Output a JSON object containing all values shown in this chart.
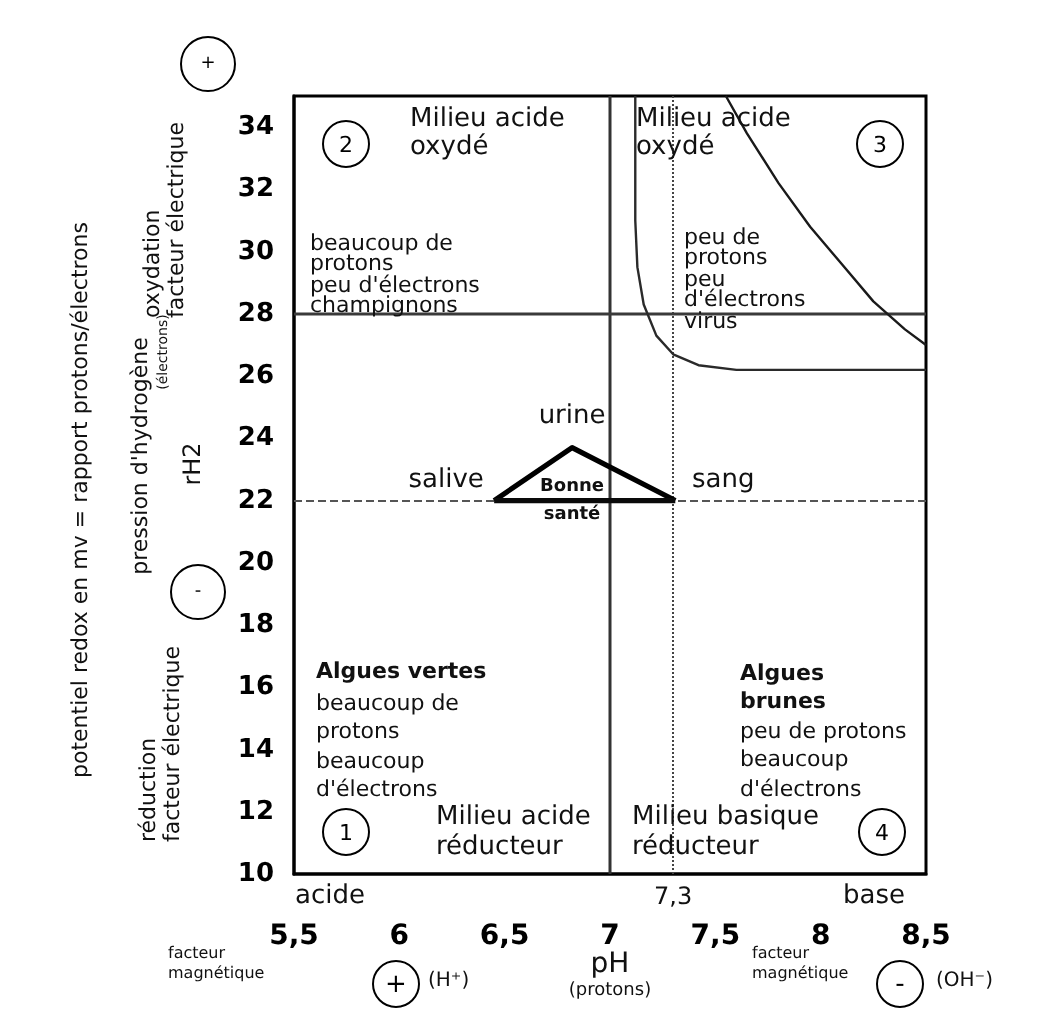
{
  "chart_data": {
    "type": "line",
    "xlabel": "pH\n(protons)",
    "ylabel": "rH2",
    "xlim": [
      5.5,
      8.5
    ],
    "xticks": [
      {
        "value": 5.5,
        "label": "5,5"
      },
      6,
      {
        "value": 6.5,
        "label": "6,5"
      },
      7,
      {
        "value": 7.5,
        "label": "7,5"
      },
      8,
      {
        "value": 8.5,
        "label": "8,5"
      }
    ],
    "ylim": [
      10,
      35
    ],
    "yticks": [
      10,
      12,
      14,
      16,
      18,
      20,
      22,
      24,
      26,
      28,
      30,
      32,
      34
    ],
    "series": [
      {
        "color": "#000000",
        "x": [
          6.45,
          6.82,
          7.31
        ],
        "values": [
          22,
          23.7,
          22
        ]
      },
      {
        "color": "#0a0a0a",
        "x": [
          6.45,
          7.31
        ],
        "values": [
          22,
          22
        ]
      },
      {
        "color": "#1a1a1a",
        "x": [
          7.55,
          7.65,
          7.8,
          7.95,
          8.1,
          8.25,
          8.4,
          8.5
        ],
        "values": [
          35,
          33.8,
          32.2,
          30.8,
          29.6,
          28.4,
          27.5,
          27
        ]
      },
      {
        "color": "#2a2a2a",
        "x": [
          7.12,
          7.12,
          7.13,
          7.16,
          7.22,
          7.3,
          7.42,
          7.6,
          8.5
        ],
        "values": [
          35,
          31,
          29.5,
          28.3,
          27.3,
          26.7,
          26.35,
          26.2,
          26.2
        ]
      }
    ],
    "ref_lines": [
      {
        "axis": "x",
        "value": 7,
        "color": "#333333",
        "line_style": "solid"
      },
      {
        "axis": "x",
        "value": 7.3,
        "label": "7,3",
        "color": "#444444",
        "line_style": "dotted"
      },
      {
        "axis": "y",
        "value": 28,
        "color": "#3a3a3a",
        "line_style": "solid"
      },
      {
        "axis": "y",
        "value": 22,
        "color": "#555555",
        "line_style": "dashed"
      }
    ],
    "annotations": [
      {
        "text": "urine",
        "x": 6.82,
        "y": 23.7
      },
      {
        "text": "salive",
        "x": 6.45,
        "y": 22
      },
      {
        "text": "sang",
        "x": 7.31,
        "y": 22
      },
      {
        "text": "Bonne\nsanté",
        "x": 6.82,
        "y": 22
      },
      "Milieu acide\noxydé",
      "Milieu acide\noxydé",
      "beaucoup de\nprotons\npeu d'électrons\nchampignons",
      "peu de\nprotons\npeu\nd'électrons\nvirus",
      "Algues vertes",
      "beaucoup de\nprotons\nbeaucoup\nd'électrons",
      "Algues\nbrunes",
      "peu de protons\nbeaucoup\nd'électrons",
      "Milieu acide\nréducteur",
      "Milieu basique\nréducteur",
      "1",
      "2",
      "3",
      "4",
      "acide",
      "base",
      "facteur\nmagnétique",
      "+",
      "(H⁺)",
      "facteur\nmagnétique",
      "-",
      "(OH⁻)",
      "oxydation\nfacteur électrique",
      "+",
      "pression d'hydrogène",
      "(électrons)",
      "potentiel redox en mv = rapport protons/électrons",
      "réduction\nfacteur électrique",
      "-"
    ]
  }
}
